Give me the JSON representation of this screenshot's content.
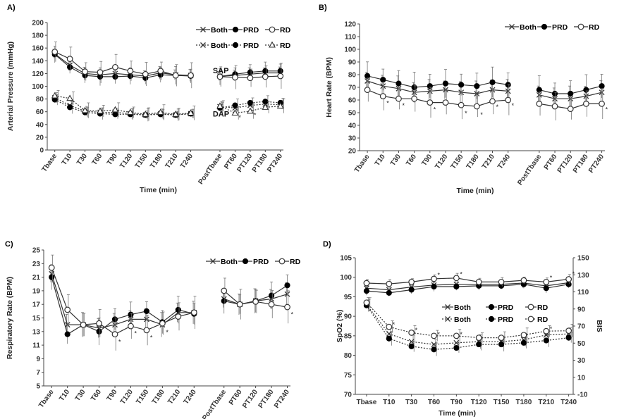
{
  "chart_data": [
    {
      "type": "line",
      "panel_label": "A)",
      "ylabel": "Arterial Pressure (mmHg)",
      "xlabel": "Time (min)",
      "ylim": [
        0,
        200
      ],
      "yticks": [
        0,
        20,
        40,
        60,
        80,
        100,
        120,
        140,
        160,
        180,
        200
      ],
      "categories": [
        "Tbase",
        "T10",
        "T30",
        "T60",
        "T90",
        "T120",
        "T150",
        "T180",
        "T210",
        "T240",
        "PostTbase",
        "PT60",
        "PT120",
        "PT180",
        "PT240"
      ],
      "break_after_index": 9,
      "annotations": [
        {
          "text": "SAP",
          "at": [
            9.9,
            125
          ]
        },
        {
          "text": "DAP",
          "at": [
            9.9,
            57
          ]
        }
      ],
      "legend": [
        {
          "label": "Both",
          "marker": "x",
          "dash": "solid"
        },
        {
          "label": "PRD",
          "marker": "filled",
          "dash": "solid"
        },
        {
          "label": "RD",
          "marker": "open",
          "dash": "solid"
        },
        {
          "label": "Both",
          "marker": "x",
          "dash": "dotted"
        },
        {
          "label": "PRD",
          "marker": "filled",
          "dash": "dotted"
        },
        {
          "label": "RD",
          "marker": "triangle",
          "dash": "dotted"
        }
      ],
      "series": [
        {
          "marker": "x",
          "dash": "solid",
          "values": [
            151,
            133,
            120,
            118,
            120,
            118,
            116,
            121,
            118,
            117,
            116,
            117,
            119,
            121,
            121
          ],
          "err": 10
        },
        {
          "marker": "filled",
          "dash": "solid",
          "values": [
            150,
            130,
            117,
            115,
            115,
            116,
            113,
            118,
            117,
            116,
            115,
            119,
            122,
            124,
            124
          ],
          "err": 14
        },
        {
          "marker": "open",
          "dash": "solid",
          "values": [
            154,
            143,
            123,
            122,
            130,
            124,
            119,
            124,
            117,
            117,
            115,
            114,
            113,
            115,
            116
          ],
          "err": 20
        },
        {
          "marker": "x",
          "dash": "dotted",
          "values": [
            82,
            70,
            61,
            59,
            59,
            57,
            55,
            57,
            55,
            57,
            68,
            66,
            70,
            72,
            71
          ],
          "err": 8
        },
        {
          "marker": "filled",
          "dash": "dotted",
          "values": [
            79,
            67,
            59,
            57,
            56,
            56,
            55,
            56,
            55,
            57,
            66,
            70,
            74,
            76,
            74
          ],
          "err": 10
        },
        {
          "marker": "triangle",
          "dash": "dotted",
          "values": [
            85,
            81,
            62,
            61,
            63,
            59,
            56,
            59,
            56,
            58,
            69,
            58,
            61,
            67,
            69
          ],
          "err": 12
        }
      ],
      "stars": [
        [
          11,
          52
        ],
        [
          12,
          56
        ]
      ]
    },
    {
      "type": "line",
      "panel_label": "B)",
      "ylabel": "Heart Rate (BPM)",
      "xlabel": "Time (min)",
      "ylim": [
        20,
        120
      ],
      "yticks": [
        20,
        30,
        40,
        50,
        60,
        70,
        80,
        90,
        100,
        110,
        120
      ],
      "categories": [
        "Tbase",
        "T10",
        "T30",
        "T60",
        "T90",
        "T120",
        "T150",
        "T180",
        "T210",
        "T240",
        "PostTbase",
        "PT60",
        "PT120",
        "PT180",
        "PT240"
      ],
      "break_after_index": 9,
      "legend": [
        {
          "label": "Both",
          "marker": "x",
          "dash": "solid"
        },
        {
          "label": "PRD",
          "marker": "filled",
          "dash": "solid"
        },
        {
          "label": "RD",
          "marker": "open",
          "dash": "solid"
        }
      ],
      "series": [
        {
          "marker": "x",
          "dash": "solid",
          "values": [
            75,
            71,
            69,
            66,
            67,
            68,
            66,
            65,
            68,
            67,
            64,
            61,
            61,
            63,
            66
          ],
          "err": 10
        },
        {
          "marker": "filled",
          "dash": "solid",
          "values": [
            79,
            76,
            73,
            70,
            71,
            73,
            72,
            71,
            74,
            72,
            68,
            65,
            65,
            68,
            71
          ],
          "err": 12
        },
        {
          "marker": "open",
          "dash": "solid",
          "values": [
            68,
            63,
            61,
            61,
            58,
            58,
            56,
            55,
            59,
            60,
            57,
            55,
            53,
            57,
            57
          ],
          "err": 12
        }
      ],
      "stars": [
        [
          1,
          58
        ],
        [
          2,
          56
        ],
        [
          4,
          53
        ],
        [
          6,
          50
        ],
        [
          7,
          49
        ],
        [
          8,
          55
        ],
        [
          9,
          56
        ],
        [
          14,
          53
        ]
      ]
    },
    {
      "type": "line",
      "panel_label": "C)",
      "ylabel": "Respiratory Rate (BPM)",
      "xlabel": "Time (min)",
      "ylim": [
        5,
        25
      ],
      "yticks": [
        5,
        7,
        9,
        11,
        13,
        15,
        17,
        19,
        21,
        23,
        25
      ],
      "categories": [
        "Tbase",
        "T10",
        "T30",
        "T60",
        "T90",
        "T120",
        "T150",
        "T180",
        "T210",
        "T240",
        "PostTbase",
        "PT60",
        "PT120",
        "PT180",
        "PT240"
      ],
      "break_after_index": 9,
      "legend": [
        {
          "label": "Both",
          "marker": "x",
          "dash": "solid"
        },
        {
          "label": "PRD",
          "marker": "filled",
          "dash": "solid"
        },
        {
          "label": "RD",
          "marker": "open",
          "dash": "solid"
        }
      ],
      "series": [
        {
          "marker": "x",
          "dash": "solid",
          "values": [
            21.5,
            14.0,
            14.0,
            13.5,
            14.0,
            14.8,
            14.8,
            14.0,
            15.8,
            15.8,
            17.8,
            17.0,
            17.5,
            17.8,
            18.5
          ],
          "err": 1.8
        },
        {
          "marker": "filled",
          "dash": "solid",
          "values": [
            21.0,
            12.6,
            14.0,
            13.0,
            14.8,
            15.5,
            16.0,
            14.4,
            16.2,
            15.6,
            17.5,
            17.0,
            17.5,
            18.3,
            19.8
          ],
          "err": 2.0
        },
        {
          "marker": "open",
          "dash": "solid",
          "values": [
            22.4,
            16.2,
            14.0,
            14.2,
            12.6,
            13.8,
            13.2,
            14.2,
            15.2,
            15.8,
            19.0,
            17.0,
            17.4,
            17.0,
            16.6
          ],
          "err": 2.4
        }
      ],
      "stars": [
        [
          4,
          11.6
        ],
        [
          5,
          12.8
        ],
        [
          6,
          12.2
        ],
        [
          7,
          13.0
        ],
        [
          14,
          15.6
        ]
      ]
    },
    {
      "type": "line",
      "panel_label": "D)",
      "ylabel": "SpO2 (%)",
      "y2label": "BIS",
      "xlabel": "Time (min)",
      "ylim": [
        70,
        105
      ],
      "yticks": [
        70,
        75,
        80,
        85,
        90,
        95,
        100,
        105
      ],
      "y2lim": [
        -10,
        150
      ],
      "y2ticks": [
        -10,
        10,
        30,
        50,
        70,
        90,
        110,
        130,
        150
      ],
      "categories": [
        "Tbase",
        "T10",
        "T30",
        "T60",
        "T90",
        "T120",
        "T150",
        "T180",
        "T210",
        "T240"
      ],
      "legend": [
        {
          "label": "Both",
          "marker": "x",
          "dash": "solid"
        },
        {
          "label": "PRD",
          "marker": "filled",
          "dash": "solid"
        },
        {
          "label": "RD",
          "marker": "open",
          "dash": "solid"
        },
        {
          "label": "Both",
          "marker": "x",
          "dash": "dotted"
        },
        {
          "label": "PRD",
          "marker": "filled",
          "dash": "dotted"
        },
        {
          "label": "RD",
          "marker": "open",
          "dash": "dotted"
        }
      ],
      "series": [
        {
          "marker": "x",
          "dash": "solid",
          "values": [
            97.2,
            96.8,
            97.5,
            98.0,
            98.2,
            98.1,
            98.2,
            98.5,
            97.8,
            98.6
          ],
          "err": 1.2
        },
        {
          "marker": "filled",
          "dash": "solid",
          "values": [
            96.5,
            96.0,
            96.8,
            97.6,
            97.6,
            97.8,
            97.8,
            98.2,
            97.2,
            98.2
          ],
          "err": 1.2
        },
        {
          "marker": "open",
          "dash": "solid",
          "values": [
            98.5,
            98.3,
            98.8,
            99.6,
            99.8,
            98.8,
            98.8,
            99.2,
            98.8,
            99.5
          ],
          "err": 1.2
        },
        {
          "marker": "x",
          "dash": "dotted",
          "values": [
            93.0,
            85.5,
            83.5,
            82.8,
            83.2,
            83.5,
            83.5,
            84.0,
            85.2,
            85.5
          ],
          "err": 1.8
        },
        {
          "marker": "filled",
          "dash": "dotted",
          "values": [
            92.8,
            84.3,
            82.3,
            81.5,
            81.9,
            82.8,
            82.8,
            83.2,
            83.8,
            84.5
          ],
          "err": 1.8
        },
        {
          "marker": "open",
          "dash": "dotted",
          "values": [
            93.5,
            87.3,
            85.8,
            85.0,
            85.0,
            84.5,
            84.5,
            85.2,
            86.2,
            86.3
          ],
          "err": 1.8
        }
      ],
      "stars": [
        [
          3,
          100.8
        ],
        [
          4,
          100.9
        ],
        [
          8,
          100.0
        ],
        [
          9,
          101.0
        ],
        [
          1,
          88.0
        ],
        [
          2,
          86.6
        ],
        [
          3,
          85.5
        ],
        [
          4,
          85.5
        ],
        [
          8,
          87.0
        ]
      ]
    }
  ]
}
